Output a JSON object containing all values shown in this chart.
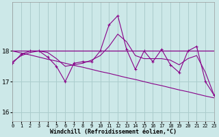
{
  "xlabel": "Windchill (Refroidissement éolien,°C)",
  "bg_color": "#cce8e8",
  "grid_color": "#aacccc",
  "line_color": "#880088",
  "hours": [
    0,
    1,
    2,
    3,
    4,
    5,
    6,
    7,
    8,
    9,
    10,
    11,
    12,
    13,
    14,
    15,
    16,
    17,
    18,
    19,
    20,
    21,
    22,
    23
  ],
  "windchill": [
    17.6,
    17.9,
    18.0,
    18.0,
    17.8,
    17.5,
    17.0,
    17.6,
    17.65,
    17.65,
    18.0,
    18.85,
    19.15,
    18.05,
    17.4,
    18.0,
    17.65,
    18.05,
    17.55,
    17.3,
    18.0,
    18.15,
    17.0,
    16.55
  ],
  "smooth": [
    17.65,
    17.85,
    17.95,
    18.0,
    17.95,
    17.75,
    17.5,
    17.55,
    17.6,
    17.7,
    17.85,
    18.15,
    18.55,
    18.3,
    17.85,
    17.75,
    17.75,
    17.75,
    17.7,
    17.55,
    17.75,
    17.85,
    17.3,
    16.55
  ],
  "trend": [
    18.0,
    18.0,
    18.0,
    18.0,
    18.0,
    18.0,
    18.0,
    18.0,
    18.0,
    18.0,
    18.0,
    18.0,
    18.0,
    18.0,
    18.0,
    18.0,
    18.0,
    18.0,
    18.0,
    18.0,
    18.0,
    18.0,
    18.0,
    18.0
  ],
  "diagonal": [
    18.0,
    17.93,
    17.87,
    17.8,
    17.73,
    17.67,
    17.6,
    17.53,
    17.47,
    17.4,
    17.33,
    17.27,
    17.2,
    17.13,
    17.07,
    17.0,
    16.93,
    16.87,
    16.8,
    16.73,
    16.67,
    16.6,
    16.53,
    16.47
  ],
  "ylim": [
    15.7,
    19.6
  ],
  "yticks": [
    16,
    17,
    18
  ],
  "xlim": [
    0,
    23
  ]
}
